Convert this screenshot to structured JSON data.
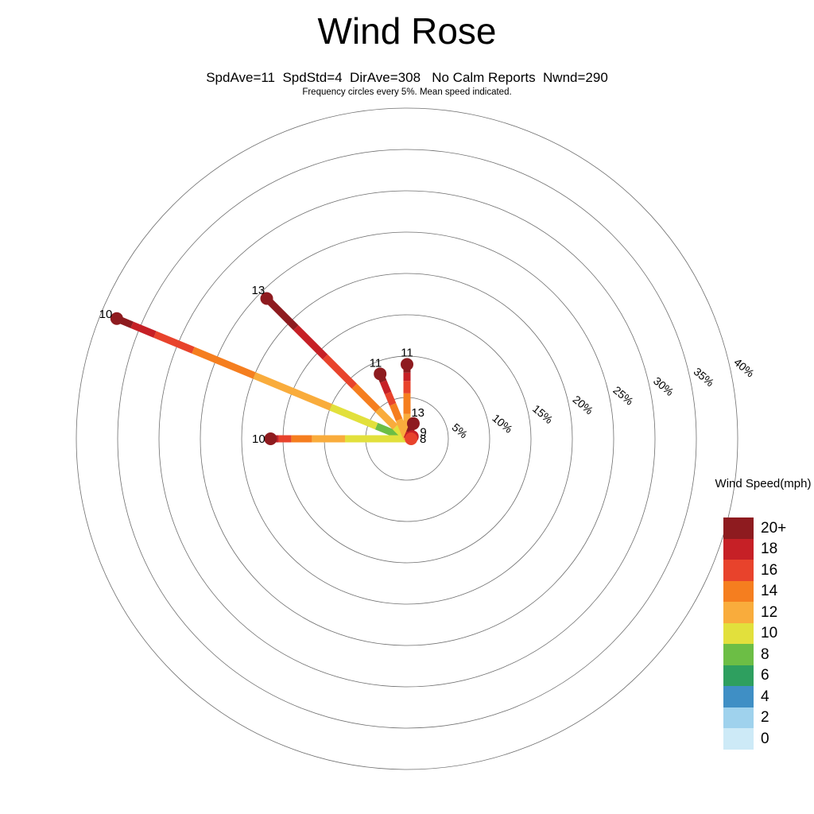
{
  "title": "Wind Rose",
  "subtitle": "SpdAve=11  SpdStd=4  DirAve=308   No Calm Reports  Nwnd=290",
  "caption": "Frequency circles every 5%. Mean speed indicated.",
  "legend": {
    "title": "Wind Speed(mph)"
  },
  "chart_data": {
    "type": "windrose",
    "units": "mph",
    "stats": {
      "SpdAve": 11,
      "SpdStd": 4,
      "DirAve": 308,
      "calm": "No Calm Reports",
      "Nwnd": 290
    },
    "frequency_circle_step_pct": 5,
    "rings_pct": [
      5,
      10,
      15,
      20,
      25,
      30,
      35,
      40
    ],
    "ring_labels": [
      "5%",
      "10%",
      "15%",
      "20%",
      "25%",
      "30%",
      "35%",
      "40%"
    ],
    "speed_bins": [
      {
        "label": "20+",
        "color": "#8E1B1F"
      },
      {
        "label": "18",
        "color": "#C62026"
      },
      {
        "label": "16",
        "color": "#E8432C"
      },
      {
        "label": "14",
        "color": "#F57E1F"
      },
      {
        "label": "12",
        "color": "#F9AC3C"
      },
      {
        "label": "10",
        "color": "#E2E03C"
      },
      {
        "label": "8",
        "color": "#6CBE45"
      },
      {
        "label": "6",
        "color": "#2E9F5F"
      },
      {
        "label": "4",
        "color": "#3F8FC5"
      },
      {
        "label": "2",
        "color": "#9FD2ED"
      },
      {
        "label": "0",
        "color": "#CDEAF7"
      }
    ],
    "spokes": [
      {
        "direction": "WNW",
        "angle_math_deg": 157.5,
        "mean_speed_label": "10",
        "total_pct": 38,
        "segments": [
          {
            "bin": "6",
            "to_pct": 1
          },
          {
            "bin": "8",
            "to_pct": 4
          },
          {
            "bin": "10",
            "to_pct": 10
          },
          {
            "bin": "12",
            "to_pct": 20
          },
          {
            "bin": "14",
            "to_pct": 28
          },
          {
            "bin": "16",
            "to_pct": 33
          },
          {
            "bin": "18",
            "to_pct": 36
          },
          {
            "bin": "20+",
            "to_pct": 38
          }
        ]
      },
      {
        "direction": "NW",
        "angle_math_deg": 135,
        "mean_speed_label": "13",
        "total_pct": 24,
        "segments": [
          {
            "bin": "10",
            "to_pct": 2
          },
          {
            "bin": "12",
            "to_pct": 5
          },
          {
            "bin": "14",
            "to_pct": 9
          },
          {
            "bin": "16",
            "to_pct": 14
          },
          {
            "bin": "18",
            "to_pct": 19
          },
          {
            "bin": "20+",
            "to_pct": 24
          }
        ]
      },
      {
        "direction": "W",
        "angle_math_deg": 180,
        "mean_speed_label": "10",
        "total_pct": 16.5,
        "segments": [
          {
            "bin": "10",
            "to_pct": 7.5
          },
          {
            "bin": "12",
            "to_pct": 11.5
          },
          {
            "bin": "14",
            "to_pct": 14
          },
          {
            "bin": "16",
            "to_pct": 15.5
          },
          {
            "bin": "18",
            "to_pct": 16
          },
          {
            "bin": "20+",
            "to_pct": 16.5
          }
        ]
      },
      {
        "direction": "NNW",
        "angle_math_deg": 112.5,
        "mean_speed_label": "11",
        "total_pct": 8.5,
        "segments": [
          {
            "bin": "12",
            "to_pct": 2.5
          },
          {
            "bin": "14",
            "to_pct": 4.5
          },
          {
            "bin": "16",
            "to_pct": 6
          },
          {
            "bin": "18",
            "to_pct": 7.5
          },
          {
            "bin": "20+",
            "to_pct": 8.5
          }
        ]
      },
      {
        "direction": "N",
        "angle_math_deg": 90,
        "mean_speed_label": "11",
        "total_pct": 9,
        "segments": [
          {
            "bin": "12",
            "to_pct": 3
          },
          {
            "bin": "14",
            "to_pct": 5.5
          },
          {
            "bin": "16",
            "to_pct": 7
          },
          {
            "bin": "18",
            "to_pct": 8
          },
          {
            "bin": "20+",
            "to_pct": 9
          }
        ]
      },
      {
        "direction": "NNE",
        "angle_math_deg": 67.5,
        "mean_speed_label": "13",
        "total_pct": 2,
        "segments": [
          {
            "bin": "18",
            "to_pct": 0.8
          },
          {
            "bin": "20+",
            "to_pct": 2
          }
        ]
      },
      {
        "direction": "ENE",
        "angle_math_deg": 22.5,
        "mean_speed_label": "9",
        "total_pct": 0.7,
        "segments": [
          {
            "bin": "18",
            "to_pct": 0.7
          }
        ]
      },
      {
        "direction": "E",
        "angle_math_deg": 0,
        "mean_speed_label": "8",
        "total_pct": 0.5,
        "segments": [
          {
            "bin": "16",
            "to_pct": 0.5
          }
        ]
      }
    ]
  }
}
